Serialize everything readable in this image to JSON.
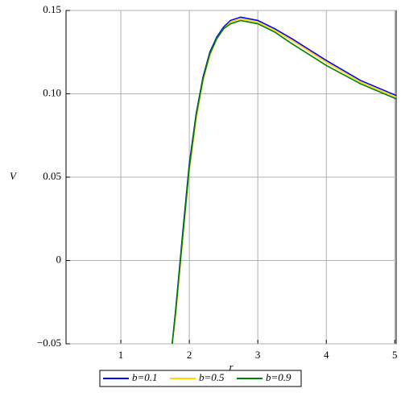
{
  "chart_data": {
    "type": "line",
    "x_label": "r",
    "y_label": "V",
    "x": [
      1.75,
      1.8,
      1.9,
      2.0,
      2.1,
      2.2,
      2.3,
      2.4,
      2.5,
      2.6,
      2.75,
      3.0,
      3.25,
      3.5,
      4.0,
      4.5,
      5.02
    ],
    "series": [
      {
        "name": "b=0.1",
        "color": "#0000ff",
        "values": [
          -0.05,
          -0.03,
          0.015,
          0.058,
          0.088,
          0.11,
          0.125,
          0.134,
          0.14,
          0.144,
          0.146,
          0.144,
          0.139,
          0.133,
          0.12,
          0.108,
          0.099
        ]
      },
      {
        "name": "b=0.5",
        "color": "#ffd700",
        "values": [
          -0.05,
          -0.033,
          0.011,
          0.054,
          0.085,
          0.108,
          0.123,
          0.133,
          0.139,
          0.143,
          0.145,
          0.143,
          0.138,
          0.132,
          0.119,
          0.107,
          0.098
        ]
      },
      {
        "name": "b=0.9",
        "color": "#008000",
        "values": [
          -0.05,
          -0.031,
          0.013,
          0.056,
          0.087,
          0.109,
          0.124,
          0.133,
          0.139,
          0.142,
          0.144,
          0.142,
          0.137,
          0.13,
          0.117,
          0.106,
          0.097
        ]
      }
    ],
    "xlim": [
      0.2,
      5.02
    ],
    "ylim": [
      -0.05,
      0.15
    ],
    "xticks": [
      1,
      2,
      3,
      4,
      5
    ],
    "yticks": [
      {
        "value": -0.05,
        "label": "−0.05"
      },
      0,
      0.05,
      {
        "value": 0.1,
        "label": "0.10"
      },
      0.15
    ],
    "grid": true,
    "legend": "bottom"
  }
}
